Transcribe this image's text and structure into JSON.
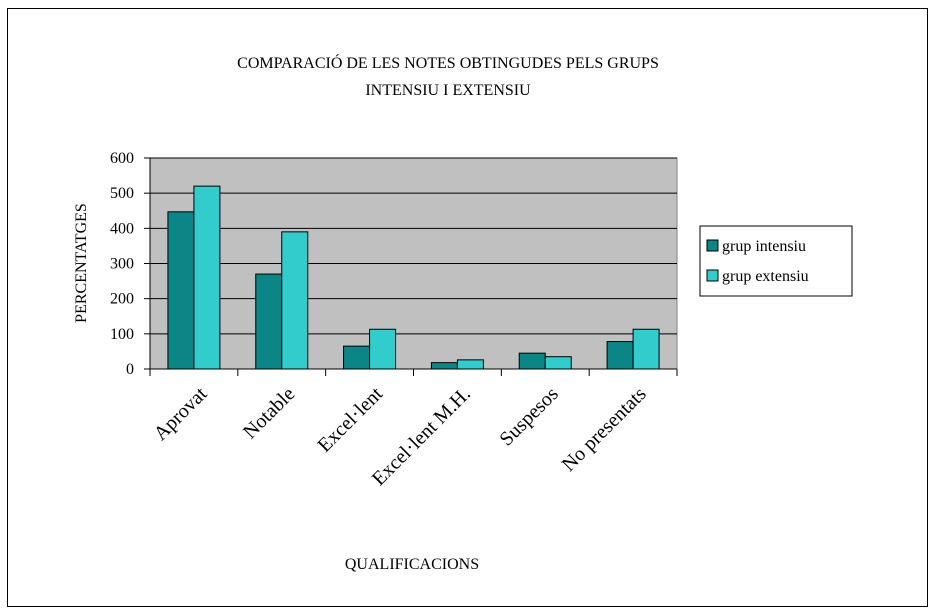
{
  "chart_data": {
    "type": "bar",
    "title": [
      "COMPARACIÓ DE LES NOTES OBTINGUDES PELS GRUPS",
      "INTENSIU I EXTENSIU"
    ],
    "x_label": "QUALIFICACIONS",
    "y_label": "PERCENTATGES",
    "categories": [
      "Aprovat",
      "Notable",
      "Excel·lent",
      "Excel·lent M.H.",
      "Suspesos",
      "No presentats"
    ],
    "series": [
      {
        "name": "grup intensiu",
        "color": "#0b8585",
        "values": [
          447,
          270,
          65,
          18,
          45,
          78
        ]
      },
      {
        "name": "grup extensiu",
        "color": "#33cccc",
        "values": [
          520,
          390,
          113,
          26,
          35,
          113
        ]
      }
    ],
    "ylim": [
      0,
      600
    ],
    "yticks": [
      0,
      100,
      200,
      300,
      400,
      500,
      600
    ],
    "grid": true,
    "legend": "right"
  }
}
